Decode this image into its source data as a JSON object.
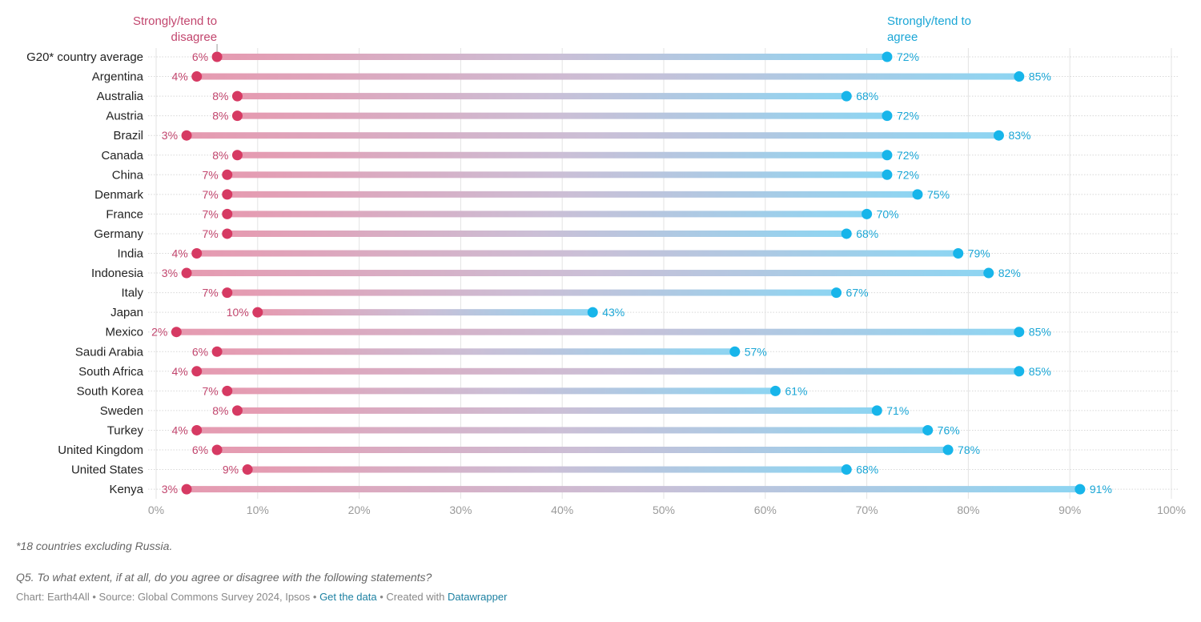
{
  "chart_data": {
    "type": "dot-range",
    "xlim": [
      0,
      100
    ],
    "x_ticks": [
      "0%",
      "10%",
      "20%",
      "30%",
      "40%",
      "50%",
      "60%",
      "70%",
      "80%",
      "90%",
      "100%"
    ],
    "grid": true,
    "series": [
      {
        "name": "Strongly/tend to disagree",
        "color": "#d63a63",
        "label_color": "#c2466e"
      },
      {
        "name": "Strongly/tend to agree",
        "color": "#17b5ea",
        "label_color": "#1aa6d6"
      }
    ],
    "categories": [
      "G20* country average",
      "Argentina",
      "Australia",
      "Austria",
      "Brazil",
      "Canada",
      "China",
      "Denmark",
      "France",
      "Germany",
      "India",
      "Indonesia",
      "Italy",
      "Japan",
      "Mexico",
      "Saudi Arabia",
      "South Africa",
      "South Korea",
      "Sweden",
      "Turkey",
      "United Kingdom",
      "United States",
      "Kenya"
    ],
    "disagree": [
      6,
      4,
      8,
      8,
      3,
      8,
      7,
      7,
      7,
      7,
      4,
      3,
      7,
      10,
      2,
      6,
      4,
      7,
      8,
      4,
      6,
      9,
      3
    ],
    "agree": [
      72,
      85,
      68,
      72,
      83,
      72,
      72,
      75,
      70,
      68,
      79,
      82,
      67,
      43,
      85,
      57,
      85,
      61,
      71,
      76,
      78,
      68,
      91
    ],
    "value_suffix": "%"
  },
  "footer": {
    "note": "*18 countries excluding Russia.",
    "question": "Q5. To what extent, if at all, do you agree or disagree with the following statements?",
    "source_prefix": "Chart: Earth4All • Source: Global Commons Survey 2024, Ipsos • ",
    "get_data": "Get the data",
    "created_with": " • Created with ",
    "datawrapper": "Datawrapper"
  }
}
